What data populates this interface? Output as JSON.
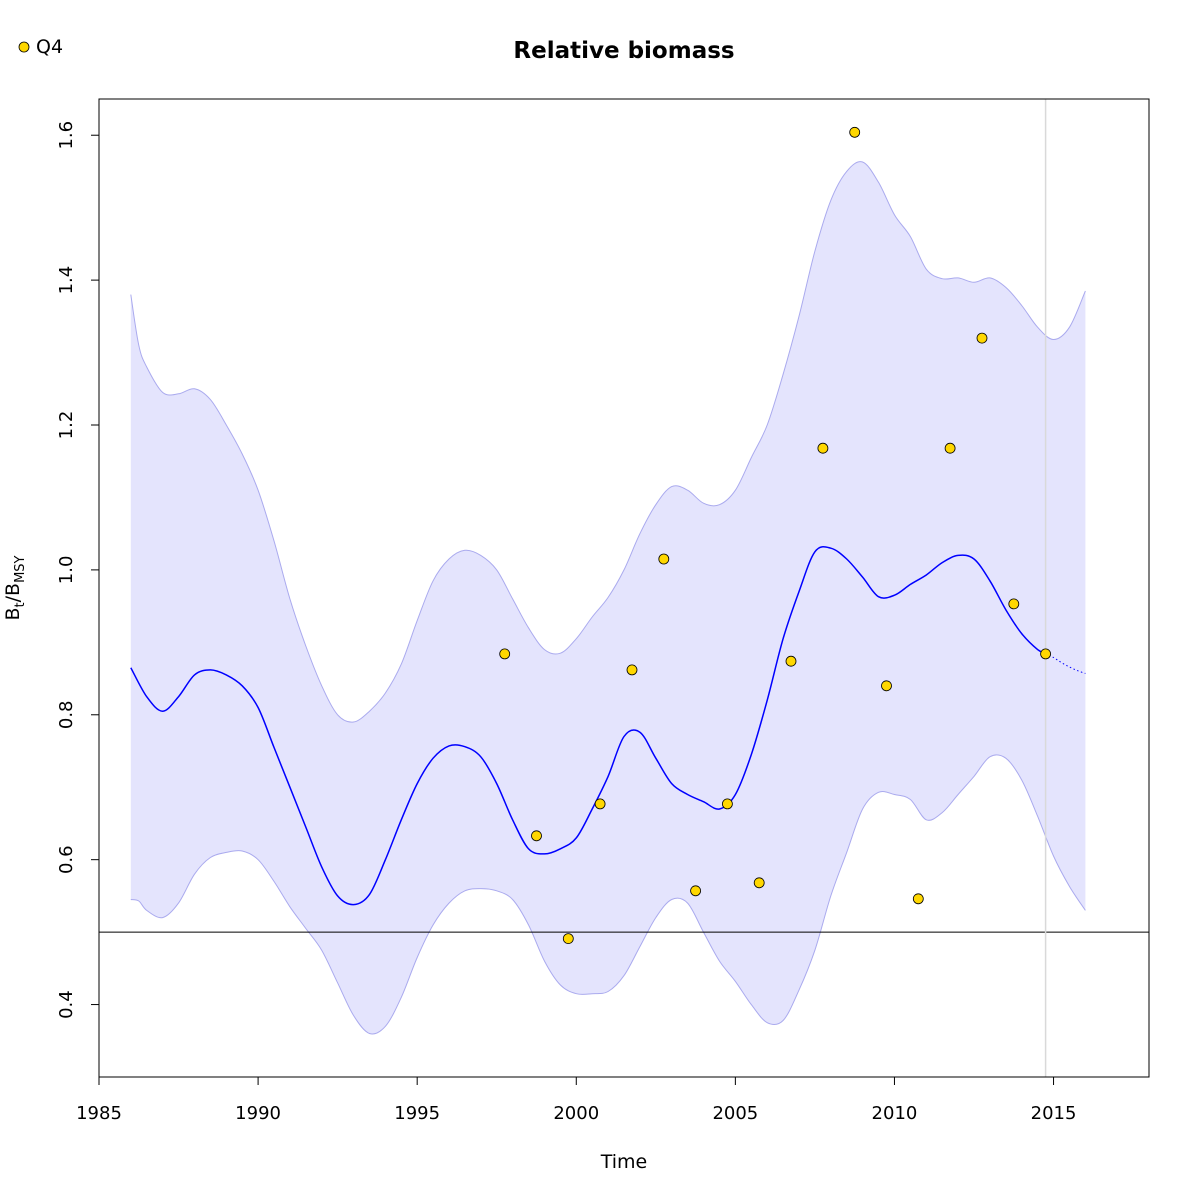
{
  "chart_data": {
    "type": "line",
    "title": "Relative biomass",
    "xlabel": "Time",
    "ylabel": {
      "main": "B",
      "sub1": "t",
      "slash": "/B",
      "sub2": "MSY"
    },
    "xlim": [
      1985,
      2018
    ],
    "ylim": [
      0.3,
      1.65
    ],
    "x_ticks": [
      1985,
      1990,
      1995,
      2000,
      2005,
      2010,
      2015
    ],
    "y_ticks": [
      0.4,
      0.6,
      0.8,
      1.0,
      1.2,
      1.4,
      1.6
    ],
    "y_tick_labels": [
      "0.4",
      "0.6",
      "0.8",
      "1.0",
      "1.2",
      "1.4",
      "1.6"
    ],
    "reference_line_y": 0.5,
    "vertical_line_x": 2014.75,
    "colors": {
      "line": "#0000ff",
      "band_fill": "#e4e4fd",
      "band_edge": "#aaaaee",
      "points": "#ffd700",
      "ref_line": "#000000",
      "vline": "#d9d9d9"
    },
    "legend": {
      "position": "top-left",
      "entries": [
        {
          "label": "Q4",
          "marker": "circle",
          "color": "#ffd700"
        }
      ]
    },
    "estimate": {
      "x": [
        1986,
        1986.5,
        1987,
        1987.5,
        1988,
        1988.5,
        1989,
        1989.5,
        1990,
        1990.5,
        1991,
        1991.5,
        1992,
        1992.5,
        1993,
        1993.5,
        1994,
        1994.5,
        1995,
        1995.5,
        1996,
        1996.5,
        1997,
        1997.5,
        1998,
        1998.5,
        1999,
        1999.5,
        2000,
        2000.5,
        2001,
        2001.5,
        2002,
        2002.5,
        2003,
        2003.5,
        2004,
        2004.5,
        2005,
        2005.5,
        2006,
        2006.5,
        2007,
        2007.5,
        2008,
        2008.5,
        2009,
        2009.5,
        2010,
        2010.5,
        2011,
        2011.5,
        2012,
        2012.5,
        2013,
        2013.5,
        2014,
        2014.5,
        2014.75
      ],
      "y": [
        0.865,
        0.825,
        0.805,
        0.825,
        0.855,
        0.862,
        0.855,
        0.84,
        0.81,
        0.755,
        0.7,
        0.645,
        0.59,
        0.55,
        0.538,
        0.552,
        0.6,
        0.655,
        0.705,
        0.74,
        0.757,
        0.756,
        0.742,
        0.705,
        0.655,
        0.615,
        0.608,
        0.615,
        0.63,
        0.67,
        0.715,
        0.77,
        0.776,
        0.74,
        0.705,
        0.69,
        0.68,
        0.67,
        0.69,
        0.745,
        0.82,
        0.905,
        0.97,
        1.025,
        1.03,
        1.015,
        0.99,
        0.963,
        0.965,
        0.98,
        0.993,
        1.01,
        1.02,
        1.015,
        0.985,
        0.945,
        0.912,
        0.89,
        0.885
      ]
    },
    "forecast": {
      "x": [
        2014.75,
        2015,
        2015.25,
        2015.5,
        2015.75,
        2016
      ],
      "y": [
        0.885,
        0.879,
        0.872,
        0.866,
        0.861,
        0.857
      ]
    },
    "ci_upper": {
      "x": [
        1986,
        1986.25,
        1986.5,
        1987,
        1987.5,
        1988,
        1988.5,
        1989,
        1989.5,
        1990,
        1990.5,
        1991,
        1991.5,
        1992,
        1992.5,
        1993,
        1993.5,
        1994,
        1994.5,
        1995,
        1995.5,
        1996,
        1996.5,
        1997,
        1997.5,
        1998,
        1998.5,
        1999,
        1999.5,
        2000,
        2000.5,
        2001,
        2001.5,
        2002,
        2002.5,
        2003,
        2003.5,
        2004,
        2004.5,
        2005,
        2005.5,
        2006,
        2006.5,
        2007,
        2007.5,
        2008,
        2008.5,
        2009,
        2009.5,
        2010,
        2010.5,
        2011,
        2011.5,
        2012,
        2012.5,
        2013,
        2013.5,
        2014,
        2014.5,
        2015,
        2015.5,
        2016
      ],
      "y": [
        1.38,
        1.31,
        1.28,
        1.245,
        1.243,
        1.25,
        1.235,
        1.2,
        1.16,
        1.11,
        1.04,
        0.96,
        0.895,
        0.84,
        0.8,
        0.79,
        0.805,
        0.83,
        0.87,
        0.93,
        0.985,
        1.015,
        1.027,
        1.02,
        1.0,
        0.96,
        0.92,
        0.89,
        0.885,
        0.905,
        0.935,
        0.962,
        1.0,
        1.05,
        1.09,
        1.115,
        1.11,
        1.092,
        1.09,
        1.11,
        1.155,
        1.2,
        1.27,
        1.35,
        1.44,
        1.51,
        1.55,
        1.563,
        1.535,
        1.49,
        1.46,
        1.415,
        1.402,
        1.403,
        1.397,
        1.403,
        1.39,
        1.365,
        1.335,
        1.318,
        1.335,
        1.385
      ]
    },
    "ci_lower": {
      "x": [
        1986,
        1986.25,
        1986.5,
        1987,
        1987.5,
        1988,
        1988.5,
        1989,
        1989.5,
        1990,
        1990.5,
        1991,
        1991.5,
        1992,
        1992.5,
        1993,
        1993.5,
        1994,
        1994.5,
        1995,
        1995.5,
        1996,
        1996.5,
        1997,
        1997.5,
        1998,
        1998.5,
        1999,
        1999.5,
        2000,
        2000.5,
        2001,
        2001.5,
        2002,
        2002.5,
        2003,
        2003.5,
        2004,
        2004.5,
        2005,
        2005.5,
        2006,
        2006.5,
        2007,
        2007.5,
        2008,
        2008.5,
        2009,
        2009.5,
        2010,
        2010.5,
        2011,
        2011.5,
        2012,
        2012.5,
        2013,
        2013.5,
        2014,
        2014.5,
        2015,
        2015.5,
        2016
      ],
      "y": [
        0.545,
        0.543,
        0.53,
        0.52,
        0.54,
        0.58,
        0.603,
        0.61,
        0.612,
        0.6,
        0.57,
        0.535,
        0.505,
        0.475,
        0.43,
        0.385,
        0.36,
        0.37,
        0.41,
        0.465,
        0.51,
        0.54,
        0.557,
        0.56,
        0.557,
        0.545,
        0.51,
        0.46,
        0.427,
        0.415,
        0.415,
        0.418,
        0.44,
        0.48,
        0.52,
        0.545,
        0.54,
        0.5,
        0.46,
        0.432,
        0.4,
        0.375,
        0.378,
        0.42,
        0.475,
        0.55,
        0.61,
        0.67,
        0.693,
        0.69,
        0.683,
        0.655,
        0.665,
        0.69,
        0.715,
        0.742,
        0.74,
        0.71,
        0.66,
        0.605,
        0.563,
        0.53
      ]
    },
    "observations": {
      "name": "Q4",
      "x": [
        1997.75,
        1998.75,
        1999.75,
        2000.75,
        2001.75,
        2002.75,
        2003.75,
        2004.75,
        2005.75,
        2006.75,
        2007.75,
        2008.75,
        2009.75,
        2010.75,
        2011.75,
        2012.75,
        2013.75,
        2014.75
      ],
      "y": [
        0.884,
        0.633,
        0.491,
        0.677,
        0.862,
        1.015,
        0.557,
        0.677,
        0.568,
        0.874,
        1.168,
        1.604,
        0.84,
        0.546,
        1.168,
        1.32,
        0.953,
        0.884
      ]
    }
  }
}
